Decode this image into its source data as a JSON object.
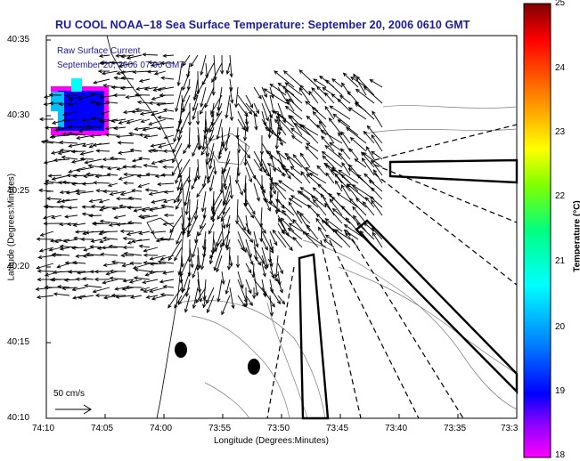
{
  "title": "RU COOL  NOAA–18  Sea Surface Temperature:  September 20, 2006 0610 GMT",
  "map": {
    "ylabel": "Latitude (Degrees:Minutes)",
    "xlabel": "Longitude (Degrees:Minutes)",
    "lat_ticks": [
      "40:35",
      "40:30",
      "40:25",
      "40:20",
      "40:15",
      "40:10"
    ],
    "lon_ticks": [
      "74:10",
      "74:05",
      "74:00",
      "73:55",
      "73:50",
      "73:45",
      "73:40",
      "73:35",
      "73:3"
    ],
    "overlay_line1": "Raw Surface Current",
    "overlay_line2": "September 20, 2006 07:00 GMT",
    "scale_label": "50 cm/s",
    "vector_color": "#000000",
    "title_color": "#1a1aa0"
  },
  "colorbar": {
    "label": "Temperature (°C)",
    "ticks": [
      "25",
      "24",
      "23",
      "22",
      "21",
      "20",
      "19",
      "18"
    ],
    "range": [
      18,
      25
    ],
    "colors": [
      "#ff00ff",
      "#6a00ff",
      "#0000ff",
      "#0080ff",
      "#00ffff",
      "#00ff80",
      "#80ff00",
      "#ffff00",
      "#ff8000",
      "#ff0000",
      "#800000"
    ]
  }
}
